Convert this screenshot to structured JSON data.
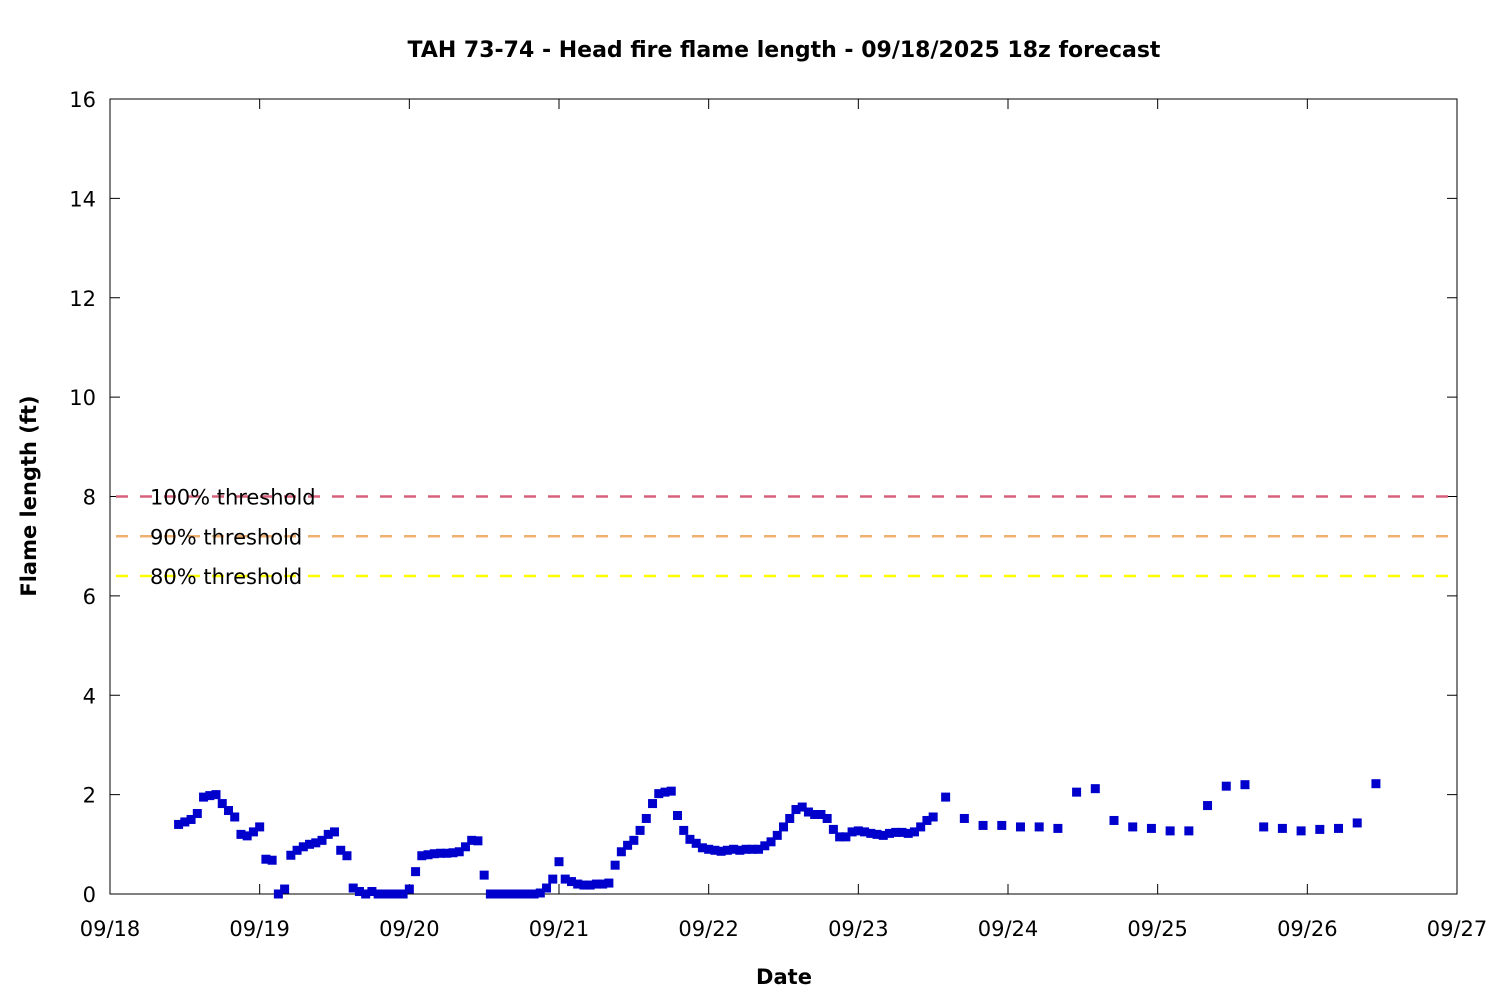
{
  "chart_data": {
    "type": "scatter",
    "title": "TAH 73-74 - Head fire flame length - 09/18/2025 18z forecast",
    "xlabel": "Date",
    "ylabel": "Flame length (ft)",
    "xlim": [
      "09/18",
      "09/27"
    ],
    "ylim": [
      0,
      16
    ],
    "x_ticks": [
      "09/18",
      "09/19",
      "09/20",
      "09/21",
      "09/22",
      "09/23",
      "09/24",
      "09/25",
      "09/26",
      "09/27"
    ],
    "y_ticks": [
      "0",
      "2",
      "4",
      "6",
      "8",
      "10",
      "12",
      "14",
      "16"
    ],
    "grid": false,
    "marker_color": "#0000cc",
    "thresholds": [
      {
        "label": "100% threshold",
        "value": 8.0,
        "color": "#d9607a"
      },
      {
        "label": "90% threshold",
        "value": 7.2,
        "color": "#f0b070"
      },
      {
        "label": "80% threshold",
        "value": 6.4,
        "color": "#ffff00"
      }
    ],
    "series": [
      {
        "points": [
          [
            "09/18 11:00",
            1.4
          ],
          [
            "09/18 12:00",
            1.45
          ],
          [
            "09/18 13:00",
            1.5
          ],
          [
            "09/18 14:00",
            1.62
          ],
          [
            "09/18 15:00",
            1.95
          ],
          [
            "09/18 16:00",
            1.98
          ],
          [
            "09/18 17:00",
            2.0
          ],
          [
            "09/18 18:00",
            1.82
          ],
          [
            "09/18 19:00",
            1.68
          ],
          [
            "09/18 20:00",
            1.55
          ],
          [
            "09/18 21:00",
            1.2
          ],
          [
            "09/18 22:00",
            1.17
          ],
          [
            "09/18 23:00",
            1.25
          ],
          [
            "09/19 00:00",
            1.35
          ],
          [
            "09/19 01:00",
            0.7
          ],
          [
            "09/19 02:00",
            0.68
          ],
          [
            "09/19 03:00",
            0.0
          ],
          [
            "09/19 04:00",
            0.1
          ],
          [
            "09/19 05:00",
            0.78
          ],
          [
            "09/19 06:00",
            0.88
          ],
          [
            "09/19 07:00",
            0.95
          ],
          [
            "09/19 08:00",
            1.0
          ],
          [
            "09/19 09:00",
            1.03
          ],
          [
            "09/19 10:00",
            1.08
          ],
          [
            "09/19 11:00",
            1.2
          ],
          [
            "09/19 12:00",
            1.25
          ],
          [
            "09/19 13:00",
            0.88
          ],
          [
            "09/19 14:00",
            0.77
          ],
          [
            "09/19 15:00",
            0.12
          ],
          [
            "09/19 16:00",
            0.05
          ],
          [
            "09/19 17:00",
            0.0
          ],
          [
            "09/19 18:00",
            0.05
          ],
          [
            "09/19 19:00",
            0.0
          ],
          [
            "09/19 20:00",
            0.0
          ],
          [
            "09/19 21:00",
            0.0
          ],
          [
            "09/19 22:00",
            0.0
          ],
          [
            "09/19 23:00",
            0.0
          ],
          [
            "09/20 00:00",
            0.1
          ],
          [
            "09/20 01:00",
            0.45
          ],
          [
            "09/20 02:00",
            0.77
          ],
          [
            "09/20 03:00",
            0.79
          ],
          [
            "09/20 04:00",
            0.81
          ],
          [
            "09/20 05:00",
            0.82
          ],
          [
            "09/20 06:00",
            0.82
          ],
          [
            "09/20 07:00",
            0.83
          ],
          [
            "09/20 08:00",
            0.85
          ],
          [
            "09/20 09:00",
            0.95
          ],
          [
            "09/20 10:00",
            1.08
          ],
          [
            "09/20 11:00",
            1.07
          ],
          [
            "09/20 12:00",
            0.38
          ],
          [
            "09/20 13:00",
            0.0
          ],
          [
            "09/20 14:00",
            0.0
          ],
          [
            "09/20 15:00",
            0.0
          ],
          [
            "09/20 16:00",
            0.0
          ],
          [
            "09/20 17:00",
            0.0
          ],
          [
            "09/20 18:00",
            0.0
          ],
          [
            "09/20 19:00",
            0.0
          ],
          [
            "09/20 20:00",
            0.0
          ],
          [
            "09/20 21:00",
            0.02
          ],
          [
            "09/20 22:00",
            0.12
          ],
          [
            "09/20 23:00",
            0.3
          ],
          [
            "09/21 00:00",
            0.65
          ],
          [
            "09/21 01:00",
            0.3
          ],
          [
            "09/21 02:00",
            0.25
          ],
          [
            "09/21 03:00",
            0.2
          ],
          [
            "09/21 04:00",
            0.18
          ],
          [
            "09/21 05:00",
            0.18
          ],
          [
            "09/21 06:00",
            0.2
          ],
          [
            "09/21 07:00",
            0.2
          ],
          [
            "09/21 08:00",
            0.22
          ],
          [
            "09/21 09:00",
            0.58
          ],
          [
            "09/21 10:00",
            0.85
          ],
          [
            "09/21 11:00",
            0.98
          ],
          [
            "09/21 12:00",
            1.08
          ],
          [
            "09/21 13:00",
            1.28
          ],
          [
            "09/21 14:00",
            1.52
          ],
          [
            "09/21 15:00",
            1.82
          ],
          [
            "09/21 16:00",
            2.02
          ],
          [
            "09/21 17:00",
            2.05
          ],
          [
            "09/21 18:00",
            2.07
          ],
          [
            "09/21 19:00",
            1.58
          ],
          [
            "09/21 20:00",
            1.28
          ],
          [
            "09/21 21:00",
            1.1
          ],
          [
            "09/21 22:00",
            1.02
          ],
          [
            "09/21 23:00",
            0.93
          ],
          [
            "09/22 00:00",
            0.9
          ],
          [
            "09/22 01:00",
            0.88
          ],
          [
            "09/22 02:00",
            0.86
          ],
          [
            "09/22 03:00",
            0.88
          ],
          [
            "09/22 04:00",
            0.9
          ],
          [
            "09/22 05:00",
            0.88
          ],
          [
            "09/22 06:00",
            0.9
          ],
          [
            "09/22 07:00",
            0.9
          ],
          [
            "09/22 08:00",
            0.9
          ],
          [
            "09/22 09:00",
            0.97
          ],
          [
            "09/22 10:00",
            1.05
          ],
          [
            "09/22 11:00",
            1.18
          ],
          [
            "09/22 12:00",
            1.35
          ],
          [
            "09/22 13:00",
            1.52
          ],
          [
            "09/22 14:00",
            1.7
          ],
          [
            "09/22 15:00",
            1.75
          ],
          [
            "09/22 16:00",
            1.65
          ],
          [
            "09/22 17:00",
            1.6
          ],
          [
            "09/22 18:00",
            1.6
          ],
          [
            "09/22 19:00",
            1.52
          ],
          [
            "09/22 20:00",
            1.3
          ],
          [
            "09/22 21:00",
            1.15
          ],
          [
            "09/22 22:00",
            1.15
          ],
          [
            "09/22 23:00",
            1.25
          ],
          [
            "09/23 00:00",
            1.27
          ],
          [
            "09/23 01:00",
            1.25
          ],
          [
            "09/23 02:00",
            1.22
          ],
          [
            "09/23 03:00",
            1.2
          ],
          [
            "09/23 04:00",
            1.18
          ],
          [
            "09/23 05:00",
            1.22
          ],
          [
            "09/23 06:00",
            1.24
          ],
          [
            "09/23 07:00",
            1.24
          ],
          [
            "09/23 08:00",
            1.22
          ],
          [
            "09/23 09:00",
            1.25
          ],
          [
            "09/23 10:00",
            1.35
          ],
          [
            "09/23 11:00",
            1.48
          ],
          [
            "09/23 12:00",
            1.55
          ],
          [
            "09/23 14:00",
            1.95
          ],
          [
            "09/23 17:00",
            1.52
          ],
          [
            "09/23 20:00",
            1.38
          ],
          [
            "09/23 23:00",
            1.38
          ],
          [
            "09/24 02:00",
            1.35
          ],
          [
            "09/24 05:00",
            1.35
          ],
          [
            "09/24 08:00",
            1.32
          ],
          [
            "09/24 11:00",
            2.05
          ],
          [
            "09/24 14:00",
            2.12
          ],
          [
            "09/24 17:00",
            1.48
          ],
          [
            "09/24 20:00",
            1.35
          ],
          [
            "09/24 23:00",
            1.32
          ],
          [
            "09/25 02:00",
            1.27
          ],
          [
            "09/25 05:00",
            1.27
          ],
          [
            "09/25 08:00",
            1.78
          ],
          [
            "09/25 11:00",
            2.17
          ],
          [
            "09/25 14:00",
            2.2
          ],
          [
            "09/25 17:00",
            1.35
          ],
          [
            "09/25 20:00",
            1.32
          ],
          [
            "09/25 23:00",
            1.27
          ],
          [
            "09/26 02:00",
            1.3
          ],
          [
            "09/26 05:00",
            1.32
          ],
          [
            "09/26 08:00",
            1.43
          ],
          [
            "09/26 11:00",
            2.22
          ]
        ]
      }
    ]
  }
}
